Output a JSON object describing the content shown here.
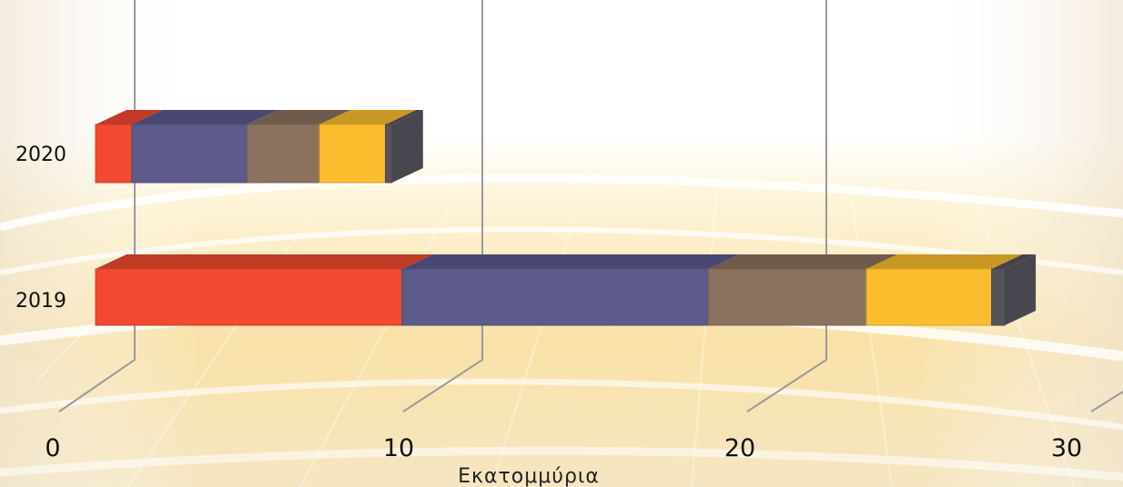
{
  "chart_data": {
    "type": "bar",
    "orientation": "horizontal",
    "stacked": true,
    "three_d": true,
    "categories": [
      "2020",
      "2019"
    ],
    "series": [
      {
        "color": "#F04A30",
        "values": [
          1.1,
          9.3
        ]
      },
      {
        "color": "#5D5A8C",
        "values": [
          3.5,
          9.3
        ]
      },
      {
        "color": "#8A725F",
        "values": [
          2.2,
          4.8
        ]
      },
      {
        "color": "#FBBD2D",
        "values": [
          2.0,
          3.8
        ]
      },
      {
        "color": "#55535E",
        "values": [
          0.2,
          0.4
        ]
      }
    ],
    "x_ticks": [
      "0",
      "10",
      "20",
      "30"
    ],
    "xlim": [
      0,
      30
    ],
    "xlabel": "Εκατομμύρια",
    "ylabel": "",
    "title": "",
    "legend": "none",
    "grid": true
  }
}
